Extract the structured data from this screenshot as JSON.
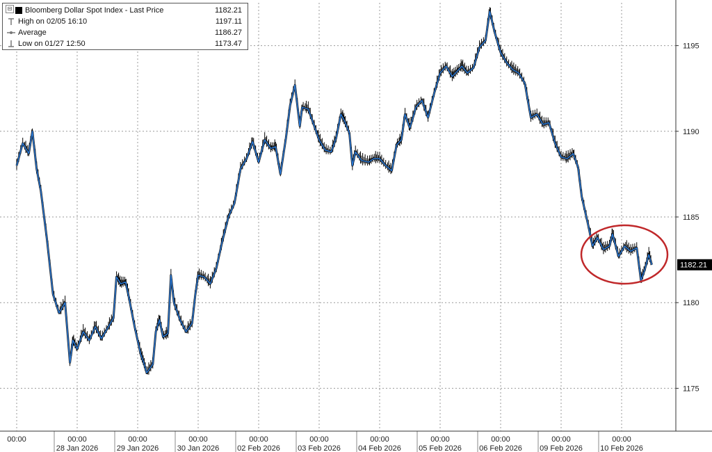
{
  "legend": {
    "collapse_symbol": "⊟",
    "items": [
      {
        "label": "Bloomberg Dollar Spot Index - Last Price",
        "value": "1182.21",
        "icon": "black-square-icon"
      },
      {
        "label": "High on 02/05 16:10",
        "value": "1197.11",
        "icon": "high-marker-icon"
      },
      {
        "label": "Average",
        "value": "1186.27",
        "icon": "average-line-icon"
      },
      {
        "label": "Low on 01/27 12:50",
        "value": "1173.47",
        "icon": "low-marker-icon"
      }
    ]
  },
  "last_price_tag": "1182.21",
  "colors": {
    "line": "#2a7ad8",
    "ohlc": "#000000",
    "grid": "#999999",
    "highlight_circle": "#c0282a",
    "price_tag_bg": "#000000",
    "price_tag_fg": "#ffffff"
  },
  "chart_data": {
    "type": "line",
    "title": "Bloomberg Dollar Spot Index - Last Price",
    "ylim": [
      1172.5,
      1197.5
    ],
    "y_ticks": [
      1175,
      1180,
      1185,
      1190,
      1195
    ],
    "x_ticks": [
      {
        "time": "00:00",
        "date": ""
      },
      {
        "time": "00:00",
        "date": "28 Jan 2026"
      },
      {
        "time": "00:00",
        "date": "29 Jan 2026"
      },
      {
        "time": "00:00",
        "date": "30 Jan 2026"
      },
      {
        "time": "00:00",
        "date": "02 Feb 2026"
      },
      {
        "time": "00:00",
        "date": "03 Feb 2026"
      },
      {
        "time": "00:00",
        "date": "04 Feb 2026"
      },
      {
        "time": "00:00",
        "date": "05 Feb 2026"
      },
      {
        "time": "00:00",
        "date": "06 Feb 2026"
      },
      {
        "time": "00:00",
        "date": "09 Feb 2026"
      },
      {
        "time": "00:00",
        "date": "10 Feb 2026"
      }
    ],
    "grid": true,
    "last_price": 1182.21,
    "high": 1197.11,
    "average": 1186.27,
    "low": 1173.47,
    "series": [
      {
        "name": "Bloomberg Dollar Spot Index - Last Price",
        "points": [
          [
            0,
            1188.0
          ],
          [
            0.1,
            1189.3
          ],
          [
            0.2,
            1188.7
          ],
          [
            0.26,
            1190.0
          ],
          [
            0.33,
            1187.8
          ],
          [
            0.4,
            1186.5
          ],
          [
            0.5,
            1183.7
          ],
          [
            0.6,
            1180.5
          ],
          [
            0.7,
            1179.4
          ],
          [
            0.8,
            1180.0
          ],
          [
            0.88,
            1176.5
          ],
          [
            0.93,
            1177.8
          ],
          [
            1.0,
            1177.3
          ],
          [
            1.1,
            1178.3
          ],
          [
            1.2,
            1177.8
          ],
          [
            1.3,
            1178.6
          ],
          [
            1.4,
            1177.9
          ],
          [
            1.5,
            1178.5
          ],
          [
            1.6,
            1179.1
          ],
          [
            1.65,
            1181.5
          ],
          [
            1.72,
            1181.1
          ],
          [
            1.8,
            1181.2
          ],
          [
            1.85,
            1180.4
          ],
          [
            1.95,
            1178.6
          ],
          [
            2.05,
            1177.0
          ],
          [
            2.1,
            1176.5
          ],
          [
            2.15,
            1175.9
          ],
          [
            2.25,
            1176.4
          ],
          [
            2.3,
            1178.3
          ],
          [
            2.36,
            1179.0
          ],
          [
            2.42,
            1178.0
          ],
          [
            2.5,
            1178.2
          ],
          [
            2.55,
            1181.6
          ],
          [
            2.6,
            1180.0
          ],
          [
            2.7,
            1179.0
          ],
          [
            2.8,
            1178.3
          ],
          [
            2.9,
            1178.8
          ],
          [
            2.95,
            1180.4
          ],
          [
            3.0,
            1181.6
          ],
          [
            3.1,
            1181.5
          ],
          [
            3.2,
            1181.1
          ],
          [
            3.3,
            1182.0
          ],
          [
            3.4,
            1183.6
          ],
          [
            3.5,
            1185.0
          ],
          [
            3.6,
            1185.8
          ],
          [
            3.7,
            1187.8
          ],
          [
            3.8,
            1188.4
          ],
          [
            3.9,
            1189.4
          ],
          [
            4.0,
            1188.2
          ],
          [
            4.1,
            1189.5
          ],
          [
            4.2,
            1189.0
          ],
          [
            4.28,
            1189.1
          ],
          [
            4.36,
            1187.5
          ],
          [
            4.45,
            1189.6
          ],
          [
            4.52,
            1191.5
          ],
          [
            4.6,
            1192.7
          ],
          [
            4.68,
            1190.3
          ],
          [
            4.72,
            1191.4
          ],
          [
            4.82,
            1191.3
          ],
          [
            4.92,
            1190.3
          ],
          [
            5.0,
            1189.5
          ],
          [
            5.1,
            1188.9
          ],
          [
            5.2,
            1188.8
          ],
          [
            5.28,
            1189.6
          ],
          [
            5.36,
            1191.0
          ],
          [
            5.42,
            1190.6
          ],
          [
            5.5,
            1189.9
          ],
          [
            5.55,
            1188.0
          ],
          [
            5.6,
            1188.8
          ],
          [
            5.7,
            1188.3
          ],
          [
            5.82,
            1188.2
          ],
          [
            5.9,
            1188.4
          ],
          [
            6.0,
            1188.4
          ],
          [
            6.1,
            1188.0
          ],
          [
            6.2,
            1187.7
          ],
          [
            6.28,
            1189.2
          ],
          [
            6.36,
            1189.5
          ],
          [
            6.42,
            1191.0
          ],
          [
            6.5,
            1190.2
          ],
          [
            6.6,
            1191.4
          ],
          [
            6.7,
            1191.8
          ],
          [
            6.8,
            1190.8
          ],
          [
            6.9,
            1192.2
          ],
          [
            7.0,
            1193.4
          ],
          [
            7.1,
            1193.8
          ],
          [
            7.2,
            1193.2
          ],
          [
            7.28,
            1193.5
          ],
          [
            7.36,
            1193.8
          ],
          [
            7.45,
            1193.4
          ],
          [
            7.55,
            1193.7
          ],
          [
            7.65,
            1194.9
          ],
          [
            7.75,
            1195.3
          ],
          [
            7.82,
            1197.0
          ],
          [
            7.9,
            1195.8
          ],
          [
            8.0,
            1194.6
          ],
          [
            8.1,
            1194.0
          ],
          [
            8.2,
            1193.6
          ],
          [
            8.3,
            1193.4
          ],
          [
            8.4,
            1192.8
          ],
          [
            8.5,
            1190.8
          ],
          [
            8.6,
            1191.0
          ],
          [
            8.7,
            1190.4
          ],
          [
            8.8,
            1190.5
          ],
          [
            8.9,
            1189.3
          ],
          [
            9.0,
            1188.5
          ],
          [
            9.1,
            1188.4
          ],
          [
            9.2,
            1188.7
          ],
          [
            9.28,
            1187.9
          ],
          [
            9.34,
            1186.2
          ],
          [
            9.45,
            1184.5
          ],
          [
            9.52,
            1183.3
          ],
          [
            9.6,
            1183.8
          ],
          [
            9.7,
            1183.1
          ],
          [
            9.8,
            1183.3
          ],
          [
            9.85,
            1184.0
          ],
          [
            9.95,
            1182.7
          ],
          [
            10.05,
            1183.3
          ],
          [
            10.15,
            1183.0
          ],
          [
            10.25,
            1183.2
          ],
          [
            10.32,
            1181.3
          ],
          [
            10.38,
            1181.9
          ],
          [
            10.45,
            1182.8
          ],
          [
            10.5,
            1182.21
          ]
        ]
      }
    ]
  }
}
